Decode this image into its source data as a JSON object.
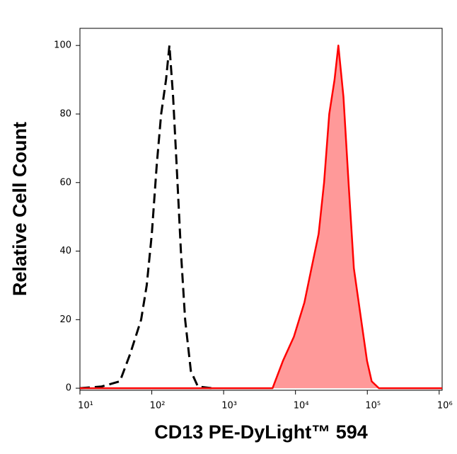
{
  "chart_data": {
    "type": "histogram-overlay",
    "x_label": "CD13 PE-DyLight™ 594",
    "y_label": "Relative Cell Count",
    "xlog": true,
    "xlim": [
      10,
      1100000
    ],
    "ylim": [
      -0.6,
      105
    ],
    "xticks": [
      {
        "value": 10,
        "label": "10¹"
      },
      {
        "value": 100,
        "label": "10²"
      },
      {
        "value": 1000,
        "label": "10³"
      },
      {
        "value": 10000,
        "label": "10⁴"
      },
      {
        "value": 100000,
        "label": "10⁵"
      },
      {
        "value": 1000000,
        "label": "10⁶"
      }
    ],
    "yticks": [
      0,
      20,
      40,
      60,
      80,
      100
    ],
    "series": [
      {
        "color": "#000000",
        "dash": true,
        "x": [
          10,
          20,
          36,
          50,
          71,
          85,
          100,
          117,
          135,
          158,
          176,
          198,
          222,
          254,
          291,
          350,
          438,
          690
        ],
        "values": [
          0,
          0.5,
          2,
          10,
          20,
          30,
          45,
          65,
          80,
          90,
          100,
          85,
          65,
          40,
          20,
          5,
          0.5,
          0
        ]
      },
      {
        "color": "#ff0000",
        "fill": "#ff9999",
        "dash": false,
        "x": [
          10,
          4800,
          6700,
          9500,
          13300,
          16700,
          21000,
          25000,
          29500,
          35000,
          39500,
          46500,
          54800,
          65000,
          82000,
          99000,
          115000,
          145000,
          1100000
        ],
        "values": [
          0,
          0,
          8,
          15,
          25,
          35,
          45,
          60,
          80,
          90,
          100,
          85,
          60,
          35,
          20,
          8,
          2,
          0,
          0
        ]
      }
    ]
  }
}
